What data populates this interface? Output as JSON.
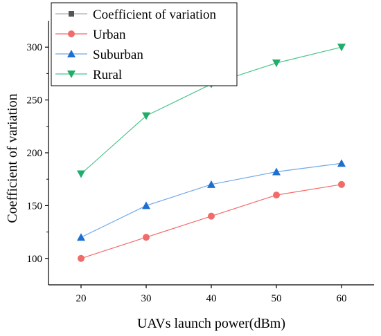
{
  "chart_data": {
    "type": "line",
    "title": "",
    "xlabel": "UAVs launch power(dBm)",
    "ylabel": "Coefficient of variation",
    "x": [
      20,
      30,
      40,
      50,
      60
    ],
    "xlim": [
      15,
      65
    ],
    "ylim": [
      75,
      325
    ],
    "xticks": [
      "20",
      "30",
      "40",
      "50",
      "60"
    ],
    "yticks": [
      "100",
      "150",
      "200",
      "250",
      "300"
    ],
    "grid": false,
    "legend_position": "top-left",
    "legend_title": "Coefficient of variation",
    "series": [
      {
        "name": "Urban",
        "values": [
          100,
          120,
          140,
          160,
          170
        ],
        "color": "#f26b6b",
        "marker": "circle"
      },
      {
        "name": "Suburban",
        "values": [
          120,
          150,
          170,
          182,
          190
        ],
        "color": "#1f6fd1",
        "line_color": "#6fa8e8",
        "marker": "triangle-up"
      },
      {
        "name": "Rural",
        "values": [
          180,
          235,
          265,
          285,
          300
        ],
        "color": "#1fad6b",
        "line_color": "#4cc48a",
        "marker": "triangle-down"
      }
    ],
    "legend_title_marker_color": "#555555"
  }
}
